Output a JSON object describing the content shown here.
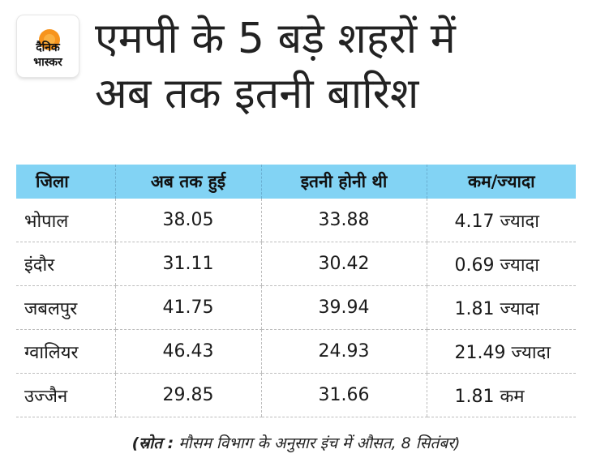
{
  "brand": {
    "logo_line1": "दैनिक",
    "logo_line2": "भास्कर",
    "accent": "#f7941d",
    "logo_text_color": "#111111"
  },
  "title": {
    "line1": "एमपी के 5 बड़े शहरों में",
    "line2": "अब तक इतनी बारिश"
  },
  "table": {
    "header_bg": "#82d3f4",
    "columns": [
      "जिला",
      "अब तक हुई",
      "इतनी होनी थी",
      "कम/ज्यादा"
    ],
    "rows": [
      [
        "भोपाल",
        "38.05",
        "33.88",
        "4.17 ज्यादा"
      ],
      [
        "इंदौर",
        "31.11",
        "30.42",
        "0.69 ज्यादा"
      ],
      [
        "जबलपुर",
        "41.75",
        "39.94",
        "1.81 ज्यादा"
      ],
      [
        "ग्वालियर",
        "46.43",
        "24.93",
        "21.49 ज्यादा"
      ],
      [
        "उज्जैन",
        "29.85",
        "31.66",
        "1.81 कम"
      ]
    ]
  },
  "source": {
    "label": "(स्रोत :",
    "text": " मौसम विभाग के अनुसार इंच में औसत, 8 सितंबर)"
  }
}
